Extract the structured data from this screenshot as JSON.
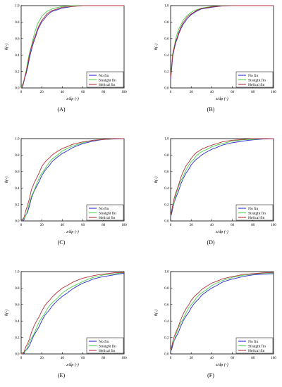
{
  "figure": {
    "legend_labels": [
      "No fin",
      "Straight fin",
      "Helical fin"
    ]
  },
  "colors": {
    "no_fin": "#2a2ad0",
    "straight_fin": "#4fcf4f",
    "helical_fin": "#b0303a"
  },
  "chart_data": [
    {
      "panel": "(A)",
      "type": "line",
      "xlabel": "z/dp (-)",
      "ylabel": "θ(-)",
      "xlim": [
        0,
        100
      ],
      "ylim": [
        0,
        1.0
      ],
      "xticks": [
        "0",
        "20",
        "40",
        "60",
        "80",
        "100"
      ],
      "yticks": [
        "0.0",
        "0.2",
        "0.4",
        "0.6",
        "0.8",
        "1.0"
      ],
      "legend": "lower-right",
      "x": [
        0,
        2,
        5,
        8,
        12,
        16,
        20,
        25,
        30,
        40,
        50,
        60,
        70,
        80,
        100
      ],
      "series": [
        {
          "name": "No fin",
          "values": [
            0,
            0.04,
            0.18,
            0.36,
            0.55,
            0.7,
            0.8,
            0.88,
            0.93,
            0.97,
            0.99,
            1.0,
            1.0,
            1.0,
            1.0
          ]
        },
        {
          "name": "Straight fin",
          "values": [
            0,
            0.06,
            0.22,
            0.42,
            0.62,
            0.78,
            0.87,
            0.93,
            0.96,
            0.99,
            1.0,
            1.0,
            1.0,
            1.0,
            1.0
          ]
        },
        {
          "name": "Helical fin",
          "values": [
            0,
            0.05,
            0.2,
            0.4,
            0.58,
            0.72,
            0.82,
            0.9,
            0.94,
            0.98,
            0.99,
            1.0,
            1.0,
            1.0,
            1.0
          ]
        }
      ]
    },
    {
      "panel": "(B)",
      "type": "line",
      "xlabel": "z/dp (-)",
      "ylabel": "θ(-)",
      "xlim": [
        0,
        100
      ],
      "ylim": [
        0,
        1.0
      ],
      "xticks": [
        "0",
        "20",
        "40",
        "60",
        "80",
        "100"
      ],
      "yticks": [
        "0.0",
        "0.2",
        "0.4",
        "0.6",
        "0.8",
        "1.0"
      ],
      "legend": "lower-right",
      "x": [
        0,
        2,
        5,
        8,
        12,
        16,
        20,
        25,
        30,
        40,
        50,
        60,
        70,
        80,
        100
      ],
      "series": [
        {
          "name": "No fin",
          "values": [
            0.1,
            0.38,
            0.55,
            0.66,
            0.77,
            0.84,
            0.89,
            0.93,
            0.96,
            0.98,
            0.995,
            1.0,
            1.0,
            1.0,
            1.0
          ]
        },
        {
          "name": "Straight fin",
          "values": [
            0.12,
            0.42,
            0.6,
            0.72,
            0.82,
            0.88,
            0.92,
            0.95,
            0.97,
            0.99,
            1.0,
            1.0,
            1.0,
            1.0,
            1.0
          ]
        },
        {
          "name": "Helical fin",
          "values": [
            0.12,
            0.4,
            0.57,
            0.68,
            0.79,
            0.86,
            0.9,
            0.94,
            0.965,
            0.985,
            0.997,
            1.0,
            1.0,
            1.0,
            1.0
          ]
        }
      ]
    },
    {
      "panel": "(C)",
      "type": "line",
      "xlabel": "z/dp (-)",
      "ylabel": "θ(-)",
      "xlim": [
        0,
        100
      ],
      "ylim": [
        0,
        1.0
      ],
      "xticks": [
        "0",
        "20",
        "40",
        "60",
        "80",
        "100"
      ],
      "yticks": [
        "0.0",
        "0.2",
        "0.4",
        "0.6",
        "0.8",
        "1.0"
      ],
      "legend": "lower-right",
      "x": [
        0,
        3,
        6,
        10,
        15,
        20,
        25,
        30,
        40,
        50,
        60,
        70,
        80,
        90,
        100
      ],
      "series": [
        {
          "name": "No fin",
          "values": [
            0,
            0.02,
            0.1,
            0.28,
            0.42,
            0.55,
            0.64,
            0.72,
            0.82,
            0.89,
            0.94,
            0.97,
            0.99,
            0.995,
            1.0
          ]
        },
        {
          "name": "Straight fin",
          "values": [
            0,
            0.03,
            0.12,
            0.3,
            0.45,
            0.58,
            0.67,
            0.75,
            0.85,
            0.91,
            0.95,
            0.98,
            0.99,
            1.0,
            1.0
          ]
        },
        {
          "name": "Helical fin",
          "values": [
            0,
            0.05,
            0.18,
            0.38,
            0.52,
            0.66,
            0.74,
            0.8,
            0.88,
            0.93,
            0.96,
            0.98,
            0.99,
            1.0,
            1.0
          ]
        }
      ]
    },
    {
      "panel": "(D)",
      "type": "line",
      "xlabel": "z/dp (-)",
      "ylabel": "θ(-)",
      "xlim": [
        0,
        100
      ],
      "ylim": [
        0,
        1.0
      ],
      "xticks": [
        "0",
        "20",
        "40",
        "60",
        "80",
        "100"
      ],
      "yticks": [
        "0.0",
        "0.2",
        "0.4",
        "0.6",
        "0.8",
        "1.0"
      ],
      "legend": "lower-right",
      "x": [
        0,
        2,
        5,
        10,
        15,
        20,
        25,
        30,
        40,
        50,
        60,
        70,
        80,
        90,
        100
      ],
      "series": [
        {
          "name": "No fin",
          "values": [
            0.05,
            0.15,
            0.28,
            0.45,
            0.58,
            0.68,
            0.75,
            0.8,
            0.87,
            0.92,
            0.95,
            0.97,
            0.985,
            0.995,
            1.0
          ]
        },
        {
          "name": "Straight fin",
          "values": [
            0.06,
            0.17,
            0.31,
            0.49,
            0.62,
            0.72,
            0.79,
            0.84,
            0.9,
            0.94,
            0.97,
            0.985,
            0.99,
            1.0,
            1.0
          ]
        },
        {
          "name": "Helical fin",
          "values": [
            0.07,
            0.19,
            0.34,
            0.53,
            0.67,
            0.76,
            0.83,
            0.87,
            0.92,
            0.96,
            0.98,
            0.99,
            1.0,
            1.0,
            1.0
          ]
        }
      ]
    },
    {
      "panel": "(E)",
      "type": "line",
      "xlabel": "z/dp (-)",
      "ylabel": "θ(-)",
      "xlim": [
        0,
        100
      ],
      "ylim": [
        0,
        1.0
      ],
      "xticks": [
        "0",
        "20",
        "40",
        "60",
        "80",
        "100"
      ],
      "yticks": [
        "0.0",
        "0.2",
        "0.4",
        "0.6",
        "0.8",
        "1.0"
      ],
      "legend": "lower-right",
      "x": [
        0,
        3,
        6,
        10,
        15,
        20,
        25,
        30,
        40,
        50,
        60,
        70,
        80,
        90,
        100
      ],
      "series": [
        {
          "name": "No fin",
          "values": [
            0,
            0.01,
            0.06,
            0.16,
            0.28,
            0.4,
            0.5,
            0.58,
            0.7,
            0.79,
            0.86,
            0.91,
            0.94,
            0.96,
            0.98
          ]
        },
        {
          "name": "Straight fin",
          "values": [
            0,
            0.02,
            0.08,
            0.19,
            0.32,
            0.44,
            0.54,
            0.62,
            0.74,
            0.82,
            0.88,
            0.93,
            0.96,
            0.97,
            0.99
          ]
        },
        {
          "name": "Helical fin",
          "values": [
            0,
            0.03,
            0.12,
            0.26,
            0.4,
            0.52,
            0.62,
            0.69,
            0.8,
            0.87,
            0.92,
            0.95,
            0.97,
            0.985,
            0.99
          ]
        }
      ]
    },
    {
      "panel": "(F)",
      "type": "line",
      "xlabel": "z/dp (-)",
      "ylabel": "θ(-)",
      "xlim": [
        0,
        100
      ],
      "ylim": [
        0,
        1.0
      ],
      "xticks": [
        "0",
        "20",
        "40",
        "60",
        "80",
        "100"
      ],
      "yticks": [
        "0.0",
        "0.2",
        "0.4",
        "0.6",
        "0.8",
        "1.0"
      ],
      "legend": "lower-right",
      "x": [
        0,
        2,
        5,
        10,
        15,
        20,
        25,
        30,
        40,
        50,
        60,
        70,
        80,
        90,
        100
      ],
      "series": [
        {
          "name": "No fin",
          "values": [
            0.03,
            0.1,
            0.2,
            0.34,
            0.46,
            0.56,
            0.64,
            0.71,
            0.8,
            0.87,
            0.91,
            0.94,
            0.96,
            0.97,
            0.975
          ]
        },
        {
          "name": "Straight fin",
          "values": [
            0.04,
            0.12,
            0.23,
            0.38,
            0.5,
            0.6,
            0.68,
            0.74,
            0.83,
            0.89,
            0.93,
            0.955,
            0.97,
            0.98,
            0.985
          ]
        },
        {
          "name": "Helical fin",
          "values": [
            0.05,
            0.14,
            0.26,
            0.42,
            0.55,
            0.65,
            0.72,
            0.78,
            0.86,
            0.91,
            0.94,
            0.965,
            0.975,
            0.985,
            0.99
          ]
        }
      ]
    }
  ]
}
